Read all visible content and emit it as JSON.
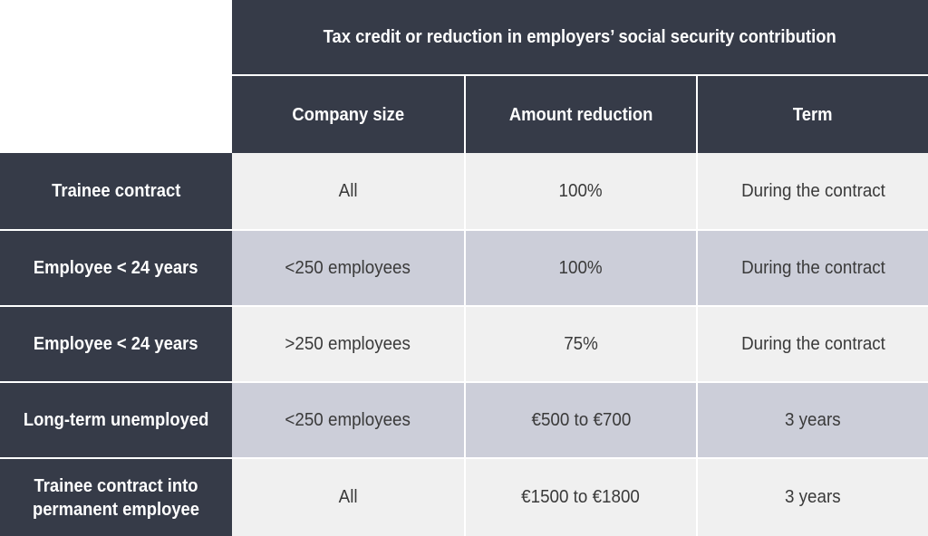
{
  "table": {
    "group_header": "Tax credit or reduction in employers’ social security contribution",
    "columns": [
      "Company size",
      "Amount reduction",
      "Term"
    ],
    "rows": [
      {
        "label": "Trainee contract",
        "cells": [
          "All",
          "100%",
          "During the contract"
        ]
      },
      {
        "label": "Employee < 24 years",
        "cells": [
          "<250 employees",
          "100%",
          "During the contract"
        ]
      },
      {
        "label": "Employee < 24 years",
        "cells": [
          ">250 employees",
          "75%",
          "During the contract"
        ]
      },
      {
        "label": "Long-term unemployed",
        "cells": [
          "<250 employees",
          "€500 to €700",
          "3 years"
        ]
      },
      {
        "label": "Trainee contract into permanent employee",
        "cells": [
          "All",
          "€1500 to €1800",
          "3 years"
        ]
      }
    ]
  },
  "colors": {
    "header_bg": "#363b48",
    "row_light": "#f0f0f0",
    "row_shaded": "#ccced9",
    "header_text": "#ffffff",
    "body_text": "#3a3a3a"
  }
}
